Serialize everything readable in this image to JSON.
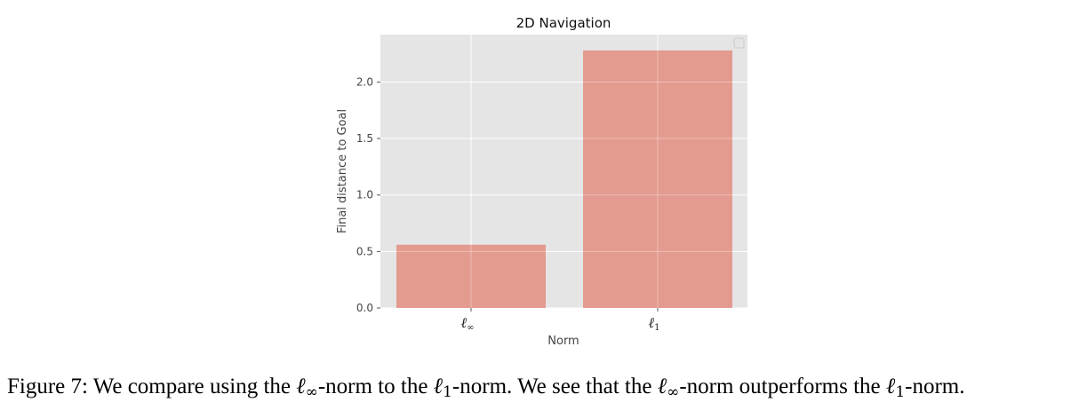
{
  "chart_data": {
    "type": "bar",
    "title": "2D Navigation",
    "xlabel": "Norm",
    "ylabel": "Final distance to Goal",
    "categories": [
      {
        "base": "ℓ",
        "sub": "∞"
      },
      {
        "base": "ℓ",
        "sub": "1"
      }
    ],
    "values": [
      0.56,
      2.28
    ],
    "ylim": [
      0,
      2.42
    ],
    "yticks": [
      "0.0",
      "0.5",
      "1.0",
      "1.5",
      "2.0"
    ],
    "ytick_values": [
      0,
      0.5,
      1.0,
      1.5,
      2.0
    ],
    "grid": true,
    "legend": "top-right (empty)",
    "colors": {
      "bar": "#e3968a",
      "plot_background": "#e5e5e5",
      "grid": "#ffffff"
    }
  },
  "caption": {
    "prefix": "Figure 7:",
    "t1": " We compare using the ",
    "m1_base": "ℓ",
    "m1_sub": "∞",
    "t2": "-norm to the ",
    "m2_base": "ℓ",
    "m2_sub": "1",
    "t3": "-norm. We see that the ",
    "m3_base": "ℓ",
    "m3_sub": "∞",
    "t4": "-norm outperforms the ",
    "m4_base": "ℓ",
    "m4_sub": "1",
    "t5": "-norm."
  }
}
